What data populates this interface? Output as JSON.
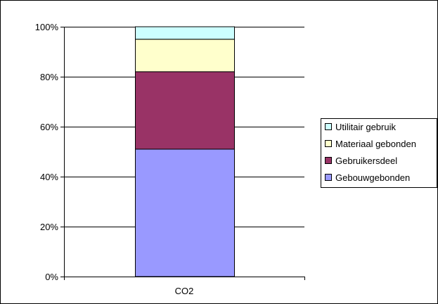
{
  "chart_data": {
    "type": "bar",
    "stacked": "percent",
    "categories": [
      "CO2"
    ],
    "series": [
      {
        "name": "Gebouwgebonden",
        "values": [
          51
        ],
        "color": "#9999ff"
      },
      {
        "name": "Gebruikersdeel",
        "values": [
          31
        ],
        "color": "#993366"
      },
      {
        "name": "Materiaal gebonden",
        "values": [
          13
        ],
        "color": "#ffffcc"
      },
      {
        "name": "Utilitair gebruik",
        "values": [
          5
        ],
        "color": "#ccffff"
      }
    ],
    "ylim": [
      0,
      100
    ],
    "yticks": [
      "0%",
      "20%",
      "40%",
      "60%",
      "80%",
      "100%"
    ],
    "grid": true,
    "legend": "right",
    "title": "",
    "xlabel": "",
    "ylabel": ""
  }
}
